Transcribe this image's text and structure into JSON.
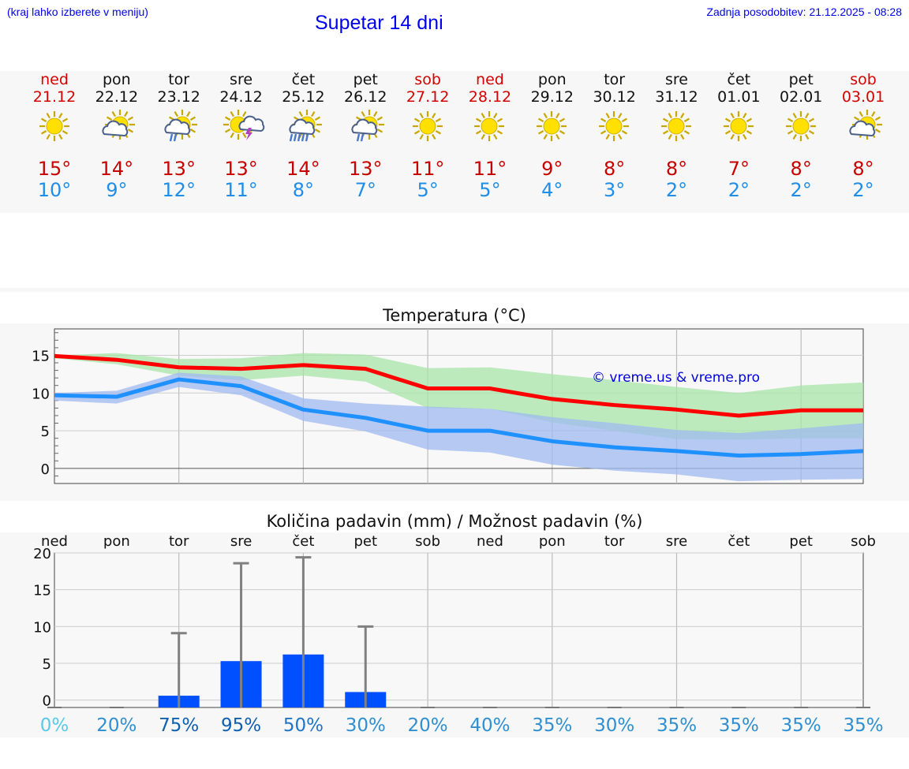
{
  "header": {
    "hint": "(kraj lahko izberete v meniju)",
    "title": "Supetar 14 dni",
    "updated": "Zadnja posodobitev: 21.12.2025 - 08:28"
  },
  "forecast": [
    {
      "day": "ned",
      "date": "21.12",
      "icon": "sun-icon",
      "max": "15°",
      "min": "10°",
      "weekend": true
    },
    {
      "day": "pon",
      "date": "22.12",
      "icon": "sun-cloud-icon",
      "max": "14°",
      "min": "9°",
      "weekend": false
    },
    {
      "day": "tor",
      "date": "23.12",
      "icon": "sun-cloud-rain-icon",
      "max": "13°",
      "min": "12°",
      "weekend": false
    },
    {
      "day": "sre",
      "date": "24.12",
      "icon": "sun-thunderstorm-icon",
      "max": "13°",
      "min": "11°",
      "weekend": false
    },
    {
      "day": "čet",
      "date": "25.12",
      "icon": "sun-cloud-heavy-rain-icon",
      "max": "14°",
      "min": "8°",
      "weekend": false
    },
    {
      "day": "pet",
      "date": "26.12",
      "icon": "sun-cloud-rain-icon",
      "max": "13°",
      "min": "7°",
      "weekend": false
    },
    {
      "day": "sob",
      "date": "27.12",
      "icon": "sun-icon",
      "max": "11°",
      "min": "5°",
      "weekend": true
    },
    {
      "day": "ned",
      "date": "28.12",
      "icon": "sun-icon",
      "max": "11°",
      "min": "5°",
      "weekend": true
    },
    {
      "day": "pon",
      "date": "29.12",
      "icon": "sun-icon",
      "max": "9°",
      "min": "4°",
      "weekend": false
    },
    {
      "day": "tor",
      "date": "30.12",
      "icon": "sun-icon",
      "max": "8°",
      "min": "3°",
      "weekend": false
    },
    {
      "day": "sre",
      "date": "31.12",
      "icon": "sun-icon",
      "max": "8°",
      "min": "2°",
      "weekend": false
    },
    {
      "day": "čet",
      "date": "01.01",
      "icon": "sun-icon",
      "max": "7°",
      "min": "2°",
      "weekend": false
    },
    {
      "day": "pet",
      "date": "02.01",
      "icon": "sun-icon",
      "max": "8°",
      "min": "2°",
      "weekend": false
    },
    {
      "day": "sob",
      "date": "03.01",
      "icon": "sun-cloud-icon",
      "max": "8°",
      "min": "2°",
      "weekend": true
    }
  ],
  "chart_data": [
    {
      "type": "line",
      "title": "Temperatura (°C)",
      "watermark": "© vreme.us & vreme.pro",
      "ylim": [
        -2,
        18.5
      ],
      "yticks": [
        0,
        5,
        10,
        15
      ],
      "x": [
        0,
        1,
        2,
        3,
        4,
        5,
        6,
        7,
        8,
        9,
        10,
        11,
        12,
        13
      ],
      "series": [
        {
          "name": "max",
          "color": "#ff0000",
          "values": [
            14.9,
            14.4,
            13.4,
            13.2,
            13.7,
            13.2,
            10.6,
            10.6,
            9.2,
            8.4,
            7.8,
            7.0,
            7.7,
            7.7
          ]
        },
        {
          "name": "min",
          "color": "#1e90ff",
          "values": [
            9.7,
            9.5,
            11.8,
            10.9,
            7.8,
            6.7,
            5.0,
            5.0,
            3.6,
            2.8,
            2.3,
            1.7,
            1.9,
            2.3
          ]
        }
      ],
      "bands": [
        {
          "name": "max-range",
          "color": "#a8e6a8",
          "upper": [
            15.0,
            15.3,
            14.5,
            14.6,
            15.3,
            15.1,
            13.3,
            13.4,
            12.5,
            11.7,
            10.8,
            10.0,
            11.0,
            11.4
          ],
          "lower": [
            14.6,
            13.8,
            12.3,
            11.7,
            12.3,
            11.5,
            8.0,
            7.9,
            6.1,
            5.0,
            3.9,
            3.8,
            4.0,
            4.0
          ]
        },
        {
          "name": "min-range",
          "color": "#9fb9f0",
          "upper": [
            10.0,
            10.3,
            12.7,
            12.2,
            9.3,
            8.6,
            8.2,
            7.9,
            6.8,
            6.0,
            5.1,
            4.7,
            5.3,
            6.0
          ],
          "lower": [
            9.0,
            8.6,
            10.8,
            9.7,
            6.3,
            4.9,
            2.5,
            2.1,
            0.5,
            -0.3,
            -0.8,
            -1.7,
            -1.5,
            -1.4
          ]
        }
      ]
    },
    {
      "type": "bar",
      "title": "Količina padavin (mm) / Možnost padavin (%)",
      "ylim": [
        -1,
        20
      ],
      "yticks": [
        0,
        5,
        10,
        15,
        20
      ],
      "categories": [
        "ned",
        "pon",
        "tor",
        "sre",
        "čet",
        "pet",
        "sob",
        "ned",
        "pon",
        "tor",
        "sre",
        "čet",
        "pet",
        "sob"
      ],
      "values": [
        0,
        0,
        0.6,
        5.3,
        6.2,
        1.1,
        0,
        0,
        0,
        0,
        0,
        0,
        0,
        0
      ],
      "error_high": [
        0,
        0,
        9.1,
        18.6,
        19.4,
        10.0,
        0,
        0,
        0,
        0,
        0,
        0,
        0,
        0
      ],
      "probabilities": [
        "0%",
        "20%",
        "75%",
        "95%",
        "50%",
        "30%",
        "20%",
        "40%",
        "35%",
        "30%",
        "35%",
        "35%",
        "35%",
        "35%"
      ],
      "probability_colors": [
        "#5ac8e8",
        "#2f8fd0",
        "#1060b0",
        "#1060b0",
        "#1f74c8",
        "#2f8fd0",
        "#2f8fd0",
        "#2f8fd0",
        "#2f8fd0",
        "#2f8fd0",
        "#2f8fd0",
        "#2f8fd0",
        "#2f8fd0",
        "#2f8fd0"
      ],
      "bar_color": "#0050ff",
      "error_color": "#808080"
    }
  ]
}
